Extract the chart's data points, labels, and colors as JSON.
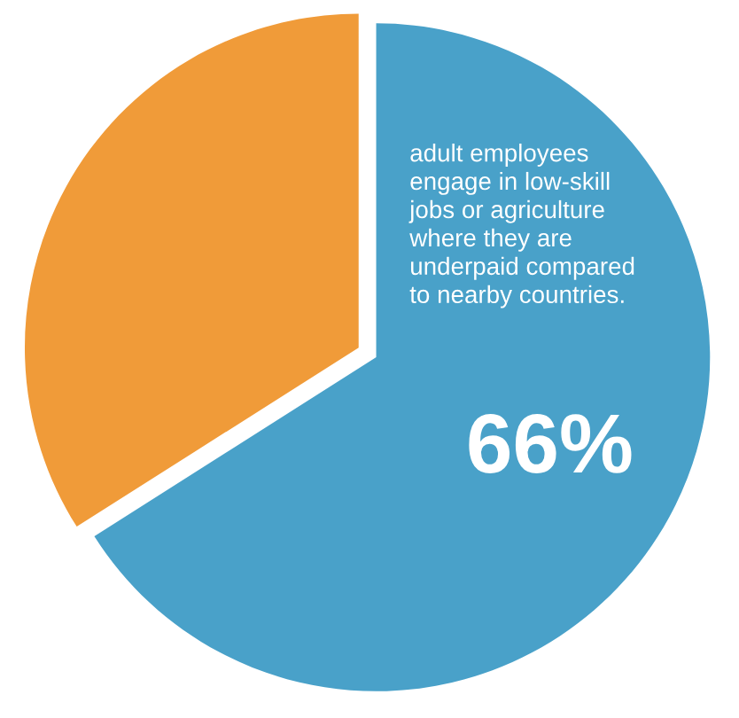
{
  "chart_data": {
    "type": "pie",
    "categories": [
      null,
      null
    ],
    "values": [
      66,
      34
    ],
    "colors": [
      "#49a1c9",
      "#f09b39"
    ],
    "value_labels": [
      "66%",
      null
    ],
    "annotations": [
      "adult employees engage in low-skill jobs or agriculture where they are underpaid compared to nearby countries."
    ],
    "legend": false
  }
}
